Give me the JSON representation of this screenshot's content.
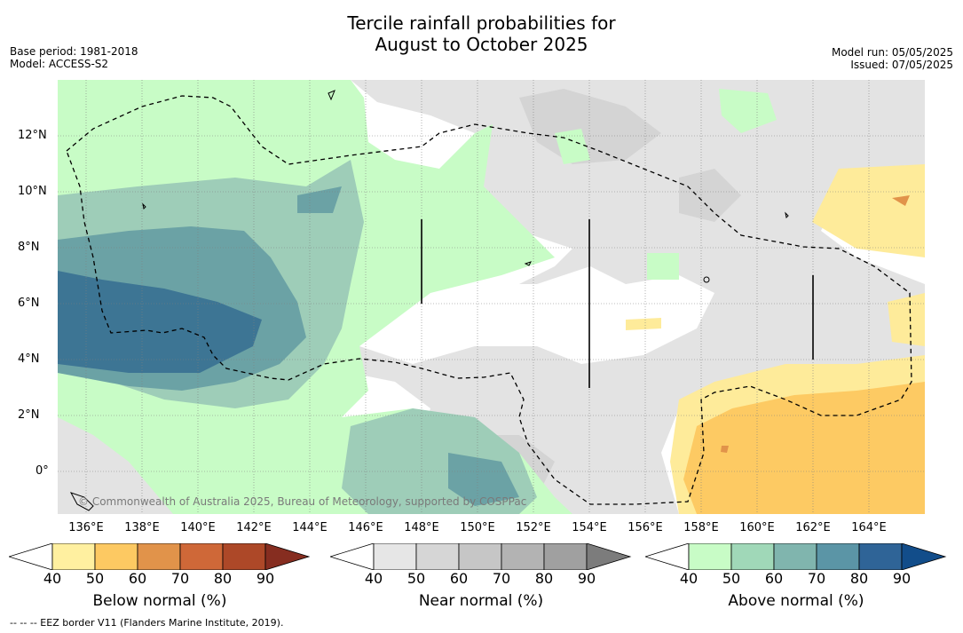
{
  "title_line1": "Tercile rainfall probabilities for",
  "title_line2": "August to October 2025",
  "base_period": "Base period: 1981-2018",
  "model": "Model: ACCESS-S2",
  "model_run": "Model run: 05/05/2025",
  "issued": "Issued: 07/05/2025",
  "map": {
    "lat_labels": [
      "12°N",
      "10°N",
      "8°N",
      "6°N",
      "4°N",
      "2°N",
      "0°"
    ],
    "lon_labels": [
      "136°E",
      "138°E",
      "140°E",
      "142°E",
      "144°E",
      "146°E",
      "148°E",
      "150°E",
      "152°E",
      "154°E",
      "156°E",
      "158°E",
      "160°E",
      "162°E",
      "164°E"
    ],
    "copyright": "© Commonwealth of Australia 2025, Bureau of Meteorology, supported by COSPPac"
  },
  "colorbars": [
    {
      "title": "Below normal (%)",
      "ticks": [
        "40",
        "50",
        "60",
        "70",
        "80",
        "90"
      ],
      "colors": [
        "#ffffff",
        "#fff0a0",
        "#fdc962",
        "#e1934a",
        "#cf6838",
        "#ad4828",
        "#862d20"
      ]
    },
    {
      "title": "Near normal (%)",
      "ticks": [
        "40",
        "50",
        "60",
        "70",
        "80",
        "90"
      ],
      "colors": [
        "#ffffff",
        "#e6e6e6",
        "#d6d6d6",
        "#c6c6c6",
        "#b3b3b3",
        "#a0a0a0",
        "#7c7c7c"
      ]
    },
    {
      "title": "Above normal (%)",
      "ticks": [
        "40",
        "50",
        "60",
        "70",
        "80",
        "90"
      ],
      "colors": [
        "#ffffff",
        "#c8fcc6",
        "#a0d8b8",
        "#80b5ae",
        "#5b95a6",
        "#2f6497",
        "#124d8a"
      ]
    }
  ],
  "footer": "--  --  -- EEZ border V11 (Flanders Marine Institute, 2019).",
  "colors": {
    "above_50": "#c8fcc6",
    "above_60": "#9ecdb8",
    "above_70": "#6ba2a5",
    "above_80": "#3d7594",
    "near_50": "#e3e3e3",
    "near_60": "#d1d1d1",
    "below_50": "#feeb9a",
    "below_60": "#fdca63",
    "below_70": "#e1934a"
  }
}
